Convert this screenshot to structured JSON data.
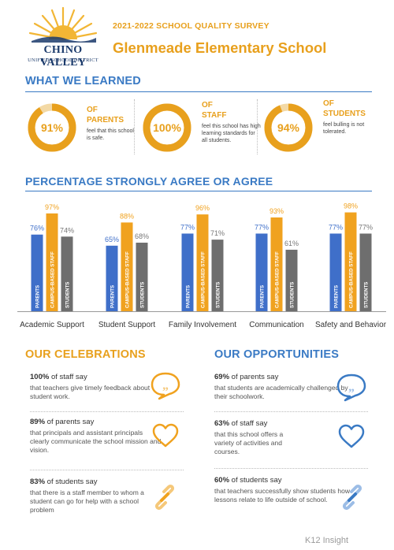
{
  "header": {
    "logo_name": "CHINO VALLEY",
    "logo_district": "UNIFIED SCHOOL DISTRICT",
    "survey_title": "2021-2022 SCHOOL QUALITY SURVEY",
    "school_name": "Glenmeade Elementary School"
  },
  "colors": {
    "accent_orange": "#e8a01d",
    "accent_blue": "#3a7ac4",
    "parents_bar": "#3f6fc9",
    "staff_bar": "#f0a21f",
    "students_bar": "#6e6e6e",
    "donut_track": "#f3d9a5"
  },
  "what_we_learned": {
    "title": "WHAT WE LEARNED",
    "stats": [
      {
        "value": "91%",
        "pct": 91,
        "of_label": "OF",
        "group": "PARENTS",
        "desc": "feel that this school is safe."
      },
      {
        "value": "100%",
        "pct": 100,
        "of_label": "OF",
        "group": "STAFF",
        "desc": "feel this school has high learning standards for all students."
      },
      {
        "value": "94%",
        "pct": 94,
        "of_label": "OF",
        "group": "STUDENTS",
        "desc": "feel bulling is not tolerated."
      }
    ]
  },
  "chart_data": {
    "type": "bar",
    "title": "PERCENTAGE STRONGLY AGREE OR AGREE",
    "categories": [
      "Academic Support",
      "Student Support",
      "Family Involvement",
      "Communication",
      "Safety and Behavior"
    ],
    "series": [
      {
        "name": "PARENTS",
        "values": [
          76,
          65,
          77,
          77,
          77
        ],
        "labels": [
          "76%",
          "65%",
          "77%",
          "77%",
          "77%"
        ]
      },
      {
        "name": "CAMPUS-BASED STAFF",
        "values": [
          97,
          88,
          96,
          93,
          98
        ],
        "labels": [
          "97%",
          "88%",
          "96%",
          "93%",
          "98%"
        ]
      },
      {
        "name": "STUDENTS",
        "values": [
          74,
          68,
          71,
          61,
          77
        ],
        "labels": [
          "74%",
          "68%",
          "71%",
          "61%",
          "77%"
        ]
      }
    ],
    "ylim": [
      0,
      100
    ],
    "grid": false,
    "legend": "none"
  },
  "celebrations": {
    "title": "OUR CELEBRATIONS",
    "items": [
      {
        "head_strong": "100%",
        "head_rest": " of staff say",
        "text": "that teachers give timely feedback about student work.",
        "icon": "speech-bubble-icon"
      },
      {
        "head_strong": "89%",
        "head_rest": " of parents say",
        "text": "that principals and assistant principals clearly communicate the school mission and vision.",
        "icon": "heart-icon"
      },
      {
        "head_strong": "83%",
        "head_rest": " of students say",
        "text": "that there is a staff member to whom a student can go for help with a school problem",
        "icon": "link-icon"
      }
    ]
  },
  "opportunities": {
    "title": "OUR OPPORTUNITIES",
    "items": [
      {
        "head_strong": "69%",
        "head_rest": " of parents say",
        "text": "that students are academically challenged by their schoolwork.",
        "icon": "speech-bubble-icon"
      },
      {
        "head_strong": "63%",
        "head_rest": " of staff say",
        "text": "that this school offers a variety of activities and courses.",
        "icon": "heart-icon"
      },
      {
        "head_strong": "60%",
        "head_rest": " of students say",
        "text": "that teachers successfully show students how lessons relate to life outside of school.",
        "icon": "link-icon"
      }
    ]
  },
  "footer": {
    "brand": "K12 Insight"
  }
}
